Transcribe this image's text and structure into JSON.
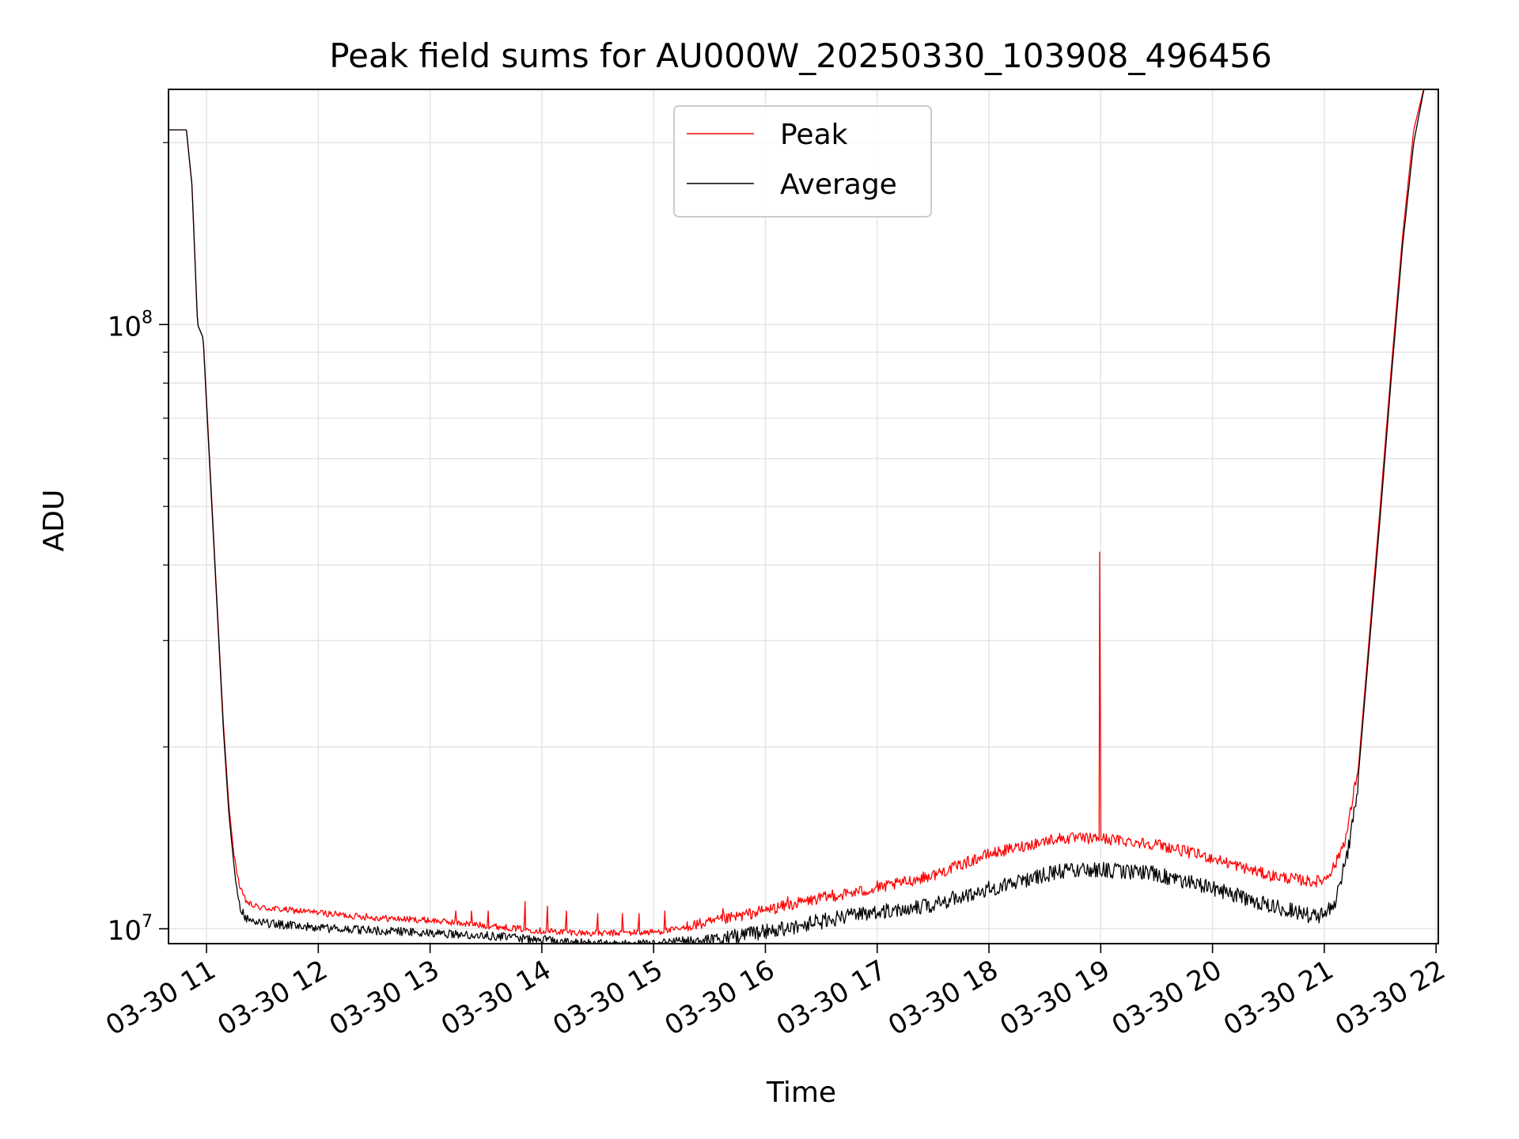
{
  "chart_data": {
    "type": "line",
    "title": "Peak field sums for AU000W_20250330_103908_496456",
    "xlabel": "Time",
    "ylabel": "ADU",
    "yscale": "log",
    "xlim": [
      10.66,
      22.02
    ],
    "ylim": [
      9450000.0,
      245000000.0
    ],
    "grid": true,
    "legend_position": "upper center",
    "x_tick_values": [
      11,
      12,
      13,
      14,
      15,
      16,
      17,
      18,
      19,
      20,
      21,
      22
    ],
    "x_tick_labels": [
      "03-30 11",
      "03-30 12",
      "03-30 13",
      "03-30 14",
      "03-30 15",
      "03-30 16",
      "03-30 17",
      "03-30 18",
      "03-30 19",
      "03-30 20",
      "03-30 21",
      "03-30 22"
    ],
    "y_tick_values": [
      10000000.0,
      100000000.0
    ],
    "y_tick_labels": [
      {
        "base": "10",
        "exp": "7"
      },
      {
        "base": "10",
        "exp": "8"
      }
    ],
    "series": [
      {
        "name": "Peak",
        "color": "#ff0000",
        "x": [
          10.66,
          10.82,
          10.87,
          10.92,
          10.97,
          11.0,
          11.05,
          11.1,
          11.15,
          11.2,
          11.25,
          11.3,
          11.35,
          11.4,
          11.5,
          11.75,
          12.0,
          12.5,
          13.0,
          13.5,
          14.0,
          14.5,
          15.0,
          15.5,
          16.0,
          16.5,
          17.0,
          17.5,
          18.0,
          18.6,
          19.0,
          19.5,
          20.0,
          20.5,
          20.9,
          21.0,
          21.1,
          21.2,
          21.3,
          21.4,
          21.5,
          21.6,
          21.7,
          21.8,
          21.9
        ],
        "y": [
          210000000.0,
          210000000.0,
          170000000.0,
          100000000.0,
          95000000.0,
          75000000.0,
          50000000.0,
          33000000.0,
          22000000.0,
          16000000.0,
          13000000.0,
          11500000.0,
          11000000.0,
          10800000.0,
          10700000.0,
          10600000.0,
          10500000.0,
          10300000.0,
          10200000.0,
          10000000.0,
          9800000.0,
          9700000.0,
          9750000.0,
          10000000.0,
          10500000.0,
          11000000.0,
          11400000.0,
          12000000.0,
          13000000.0,
          13800000.0,
          13800000.0,
          13500000.0,
          12800000.0,
          12000000.0,
          11700000.0,
          11800000.0,
          12500000.0,
          14000000.0,
          18000000.0,
          30000000.0,
          50000000.0,
          85000000.0,
          140000000.0,
          210000000.0,
          250000000.0
        ],
        "spikes": [
          {
            "x": 11.98,
            "y": 10700000.0
          },
          {
            "x": 12.43,
            "y": 10600000.0
          },
          {
            "x": 13.23,
            "y": 10700000.0
          },
          {
            "x": 13.37,
            "y": 10700000.0
          },
          {
            "x": 13.52,
            "y": 10700000.0
          },
          {
            "x": 13.85,
            "y": 11100000.0
          },
          {
            "x": 14.05,
            "y": 10900000.0
          },
          {
            "x": 14.22,
            "y": 10700000.0
          },
          {
            "x": 14.5,
            "y": 10600000.0
          },
          {
            "x": 14.72,
            "y": 10600000.0
          },
          {
            "x": 14.87,
            "y": 10600000.0
          },
          {
            "x": 15.1,
            "y": 10700000.0
          },
          {
            "x": 15.62,
            "y": 10800000.0
          },
          {
            "x": 16.2,
            "y": 11300000.0
          },
          {
            "x": 16.6,
            "y": 11600000.0
          },
          {
            "x": 17.0,
            "y": 12000000.0
          },
          {
            "x": 18.99,
            "y": 42000000.0
          }
        ]
      },
      {
        "name": "Average",
        "color": "#000000",
        "x": [
          10.66,
          10.82,
          10.87,
          10.92,
          10.97,
          11.0,
          11.05,
          11.1,
          11.15,
          11.2,
          11.25,
          11.3,
          11.35,
          11.4,
          11.5,
          11.75,
          12.0,
          12.5,
          13.0,
          13.5,
          14.0,
          14.5,
          15.0,
          15.5,
          16.0,
          16.5,
          17.0,
          17.5,
          18.0,
          18.6,
          19.0,
          19.5,
          20.0,
          20.5,
          20.9,
          21.0,
          21.1,
          21.2,
          21.3,
          21.4,
          21.5,
          21.6,
          21.7,
          21.8,
          21.9
        ],
        "y": [
          210000000.0,
          210000000.0,
          170000000.0,
          100000000.0,
          95000000.0,
          74000000.0,
          49000000.0,
          32500000.0,
          21500000.0,
          15500000.0,
          12500000.0,
          11000000.0,
          10600000.0,
          10500000.0,
          10400000.0,
          10300000.0,
          10200000.0,
          10100000.0,
          10000000.0,
          9900000.0,
          9750000.0,
          9600000.0,
          9600000.0,
          9800000.0,
          10200000.0,
          10600000.0,
          11000000.0,
          11300000.0,
          12000000.0,
          12800000.0,
          12900000.0,
          12700000.0,
          12000000.0,
          11300000.0,
          10800000.0,
          10900000.0,
          11500000.0,
          13500000.0,
          17500000.0,
          29000000.0,
          48000000.0,
          82000000.0,
          135000000.0,
          200000000.0,
          250000000.0
        ],
        "dips": [
          {
            "x": 14.55,
            "y": 9000000.0
          },
          {
            "x": 14.68,
            "y": 9300000.0
          }
        ]
      }
    ]
  }
}
